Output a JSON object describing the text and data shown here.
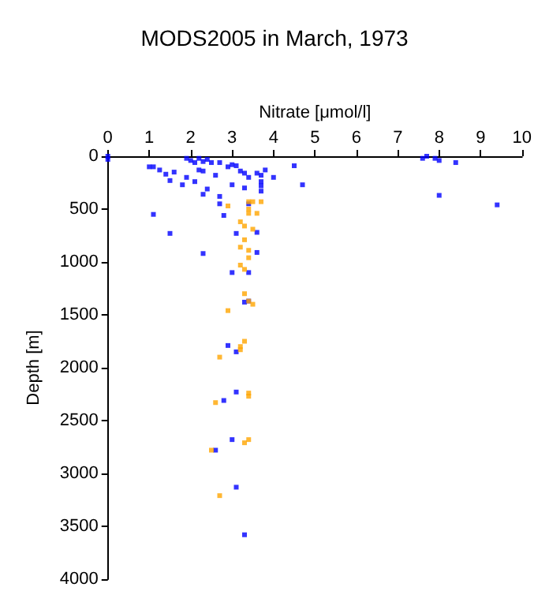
{
  "chart_data": {
    "type": "scatter",
    "title": "MODS2005 in March, 1973",
    "xlabel": "Nitrate [μmol/l]",
    "ylabel": "Depth [m]",
    "xlim": [
      0,
      10
    ],
    "xticks": [
      0,
      1,
      2,
      3,
      4,
      5,
      6,
      7,
      8,
      9,
      10
    ],
    "ylim": [
      4000,
      0
    ],
    "yticks": [
      0,
      500,
      1000,
      1500,
      2000,
      2500,
      3000,
      3500,
      4000
    ],
    "grid": false,
    "marker": "square",
    "series": [
      {
        "color": "#0000ff",
        "x": [
          0,
          0,
          1.9,
          2.0,
          2.1,
          2.2,
          2.3,
          2.4,
          2.5,
          1.1,
          1.0,
          1.25,
          1.4,
          1.6,
          1.8,
          1.5,
          1.9,
          2.2,
          2.3,
          2.1,
          2.4,
          2.3,
          2.7,
          2.7,
          2.8,
          2.6,
          2.7,
          2.9,
          3.0,
          3.1,
          3.2,
          3.3,
          3.4,
          3.6,
          3.7,
          3.8,
          4.0,
          4.5,
          4.7,
          3.0,
          3.7,
          3.7,
          3.3,
          3.7,
          7.6,
          7.7,
          7.9,
          8.0,
          8.4,
          8.0,
          9.4,
          3.4,
          3.1,
          3.6,
          2.3,
          3.6,
          3.0,
          3.4,
          3.4,
          3.3,
          1.1,
          1.5,
          2.9,
          3.1,
          3.1,
          2.8,
          3.0,
          2.6,
          3.1,
          3.3
        ],
        "values": [
          0,
          30,
          20,
          40,
          60,
          20,
          50,
          30,
          60,
          100,
          100,
          130,
          170,
          150,
          270,
          230,
          200,
          130,
          140,
          240,
          310,
          360,
          380,
          450,
          560,
          180,
          60,
          100,
          80,
          90,
          140,
          160,
          200,
          160,
          180,
          130,
          200,
          90,
          270,
          270,
          280,
          330,
          300,
          240,
          20,
          0,
          20,
          40,
          60,
          370,
          460,
          450,
          730,
          720,
          920,
          910,
          1100,
          1100,
          1370,
          1380,
          550,
          730,
          1790,
          1850,
          2230,
          2310,
          2680,
          2780,
          3130,
          3580
        ]
      },
      {
        "color": "#ffa500",
        "x": [
          2.9,
          3.4,
          3.5,
          3.7,
          3.4,
          3.4,
          3.6,
          3.2,
          3.3,
          3.5,
          3.3,
          3.2,
          3.4,
          3.4,
          3.2,
          3.3,
          3.3,
          3.4,
          3.5,
          2.9,
          3.3,
          3.2,
          3.2,
          2.7,
          3.4,
          3.4,
          2.6,
          3.4,
          3.3,
          2.5,
          2.7
        ],
        "values": [
          470,
          430,
          430,
          430,
          500,
          540,
          540,
          620,
          660,
          690,
          790,
          860,
          890,
          960,
          1030,
          1070,
          1300,
          1370,
          1400,
          1460,
          1750,
          1800,
          1830,
          1900,
          2240,
          2270,
          2330,
          2680,
          2710,
          2780,
          3210
        ]
      }
    ]
  }
}
